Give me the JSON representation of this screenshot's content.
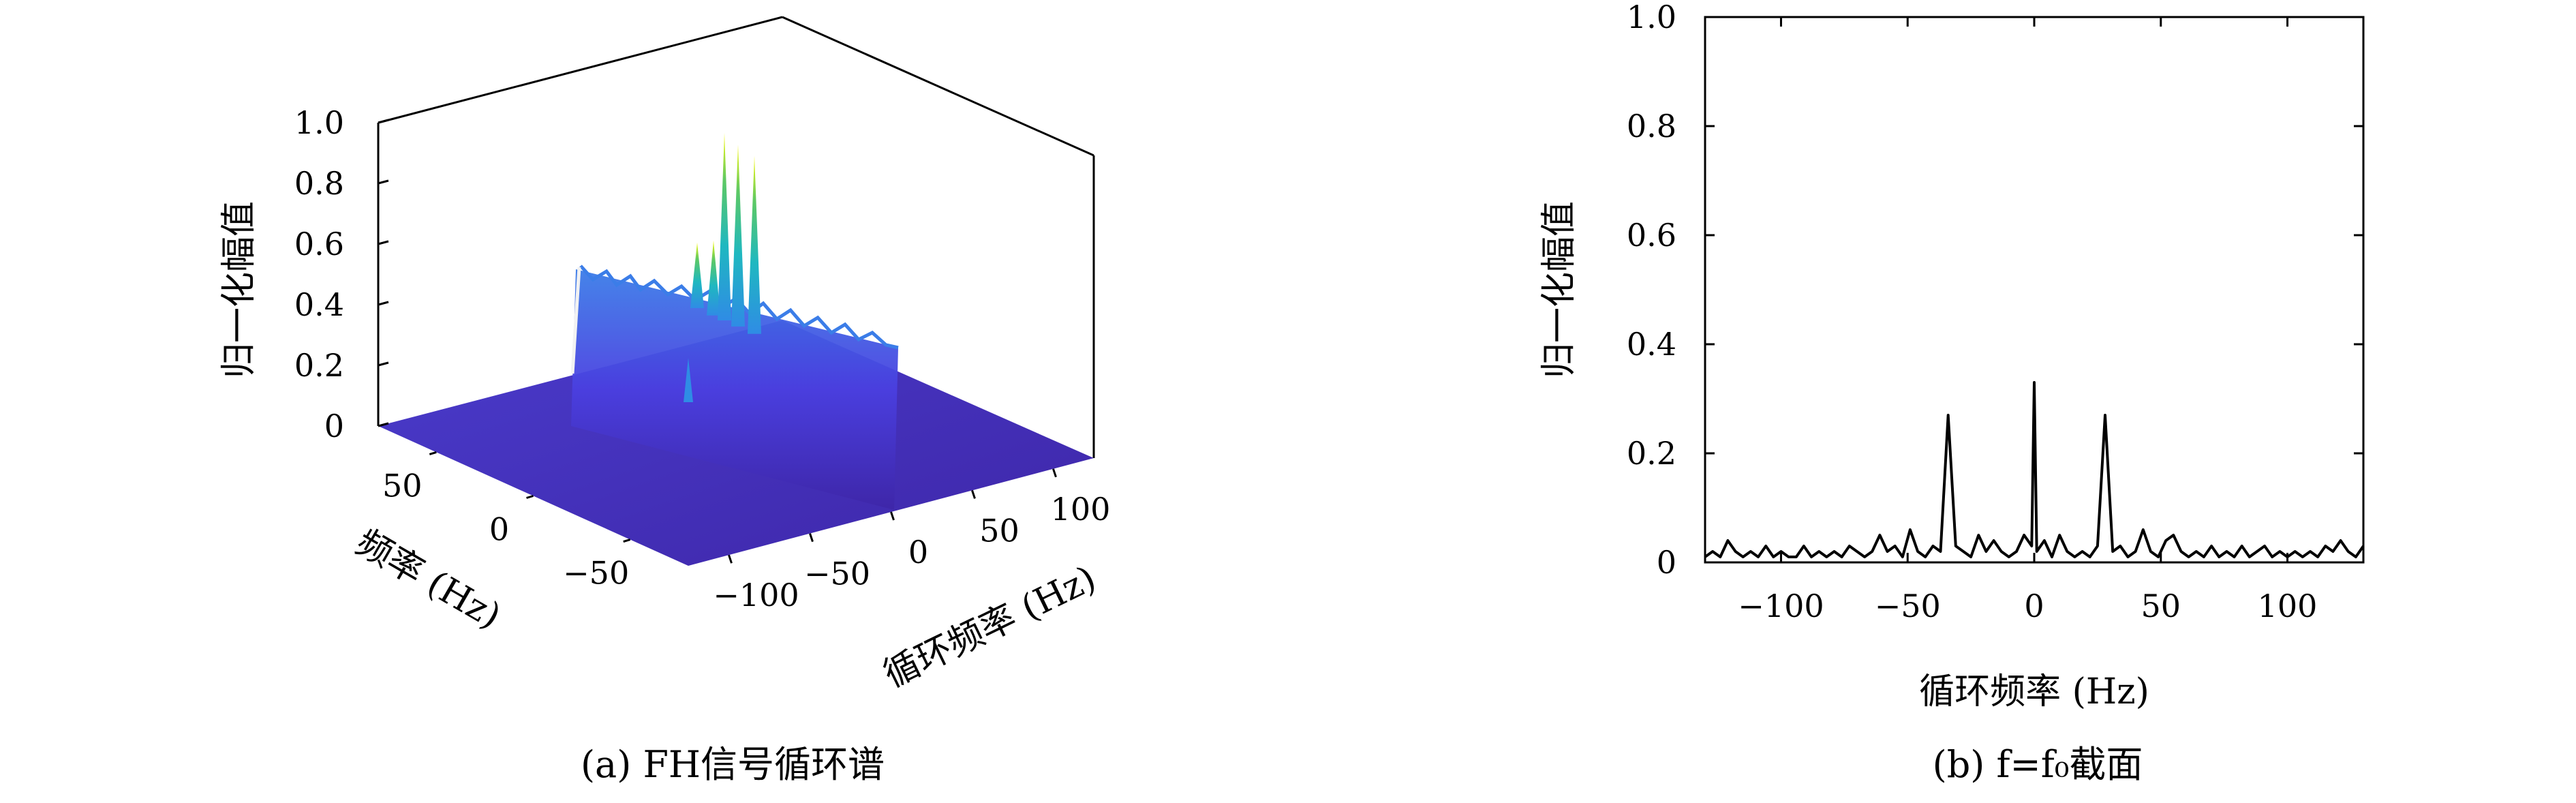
{
  "chart_data": [
    {
      "type": "surface",
      "caption": "(a) FH信号循环谱",
      "zlabel": "归一化幅值",
      "xlabel": "循环频率 (Hz)",
      "ylabel": "频率 (Hz)",
      "x_ticks": [
        "−100",
        "−50",
        "0",
        "50",
        "100"
      ],
      "y_ticks": [
        "50",
        "0",
        "−50"
      ],
      "z_ticks": [
        "1.0",
        "0.8",
        "0.6",
        "0.4",
        "0.2",
        "0"
      ],
      "xlim": [
        -125,
        125
      ],
      "ylim": [
        -80,
        80
      ],
      "zlim": [
        0,
        1
      ],
      "colormap": [
        "#3e26a8",
        "#4745d7",
        "#2f8ce5",
        "#1fb8c0",
        "#5ec962",
        "#f9fb0e"
      ],
      "ridge": {
        "cyclic_freq_range": [
          -110,
          0
        ],
        "level": 0.45
      },
      "peaks": [
        {
          "cyclic_freq": -8,
          "value": 0.4
        },
        {
          "cyclic_freq": 0,
          "value": 1.0
        },
        {
          "cyclic_freq": 10,
          "value": 0.97
        },
        {
          "cyclic_freq": 22,
          "value": 0.95
        },
        {
          "cyclic_freq": -20,
          "value": 0.35
        }
      ],
      "floor_level": 0.03
    },
    {
      "type": "line",
      "caption": "(b) f=f₀截面",
      "xlabel": "循环频率 (Hz)",
      "ylabel": "归一化幅值",
      "xlim": [
        -130,
        130
      ],
      "ylim": [
        0,
        1
      ],
      "x_ticks": [
        "−100",
        "−50",
        "0",
        "50",
        "100"
      ],
      "x_tick_values": [
        -100,
        -50,
        0,
        50,
        100
      ],
      "y_ticks": [
        "0",
        "0.2",
        "0.4",
        "0.6",
        "0.8",
        "1.0"
      ],
      "y_tick_values": [
        0,
        0.2,
        0.4,
        0.6,
        0.8,
        1.0
      ],
      "series": [
        {
          "x": [
            -130,
            -127,
            -124,
            -121,
            -118,
            -115,
            -112,
            -109,
            -106,
            -103,
            -100,
            -97,
            -94,
            -91,
            -88,
            -85,
            -82,
            -79,
            -76,
            -73,
            -70,
            -67,
            -64,
            -61,
            -58,
            -55,
            -52,
            -49,
            -46,
            -43,
            -40,
            -37,
            -34,
            -31,
            -28,
            -25,
            -22,
            -19,
            -16,
            -13,
            -10,
            -7,
            -4,
            -1,
            0,
            1,
            4,
            7,
            10,
            13,
            16,
            19,
            22,
            25,
            28,
            31,
            34,
            37,
            40,
            43,
            46,
            49,
            52,
            55,
            58,
            61,
            64,
            67,
            70,
            73,
            76,
            79,
            82,
            85,
            88,
            91,
            94,
            97,
            100,
            103,
            106,
            109,
            112,
            115,
            118,
            121,
            124,
            127,
            130
          ],
          "y": [
            0.01,
            0.02,
            0.01,
            0.04,
            0.02,
            0.01,
            0.02,
            0.01,
            0.03,
            0.01,
            0.02,
            0.01,
            0.01,
            0.03,
            0.01,
            0.02,
            0.01,
            0.02,
            0.01,
            0.03,
            0.02,
            0.01,
            0.02,
            0.05,
            0.02,
            0.03,
            0.01,
            0.06,
            0.02,
            0.01,
            0.03,
            0.02,
            0.27,
            0.03,
            0.02,
            0.01,
            0.05,
            0.02,
            0.04,
            0.02,
            0.01,
            0.02,
            0.05,
            0.03,
            0.33,
            0.02,
            0.04,
            0.01,
            0.05,
            0.02,
            0.01,
            0.02,
            0.01,
            0.03,
            0.27,
            0.02,
            0.03,
            0.01,
            0.02,
            0.06,
            0.02,
            0.01,
            0.04,
            0.05,
            0.02,
            0.01,
            0.02,
            0.01,
            0.03,
            0.01,
            0.02,
            0.01,
            0.03,
            0.01,
            0.02,
            0.03,
            0.01,
            0.02,
            0.01,
            0.02,
            0.01,
            0.02,
            0.01,
            0.03,
            0.02,
            0.04,
            0.02,
            0.01,
            0.03
          ]
        }
      ]
    }
  ]
}
